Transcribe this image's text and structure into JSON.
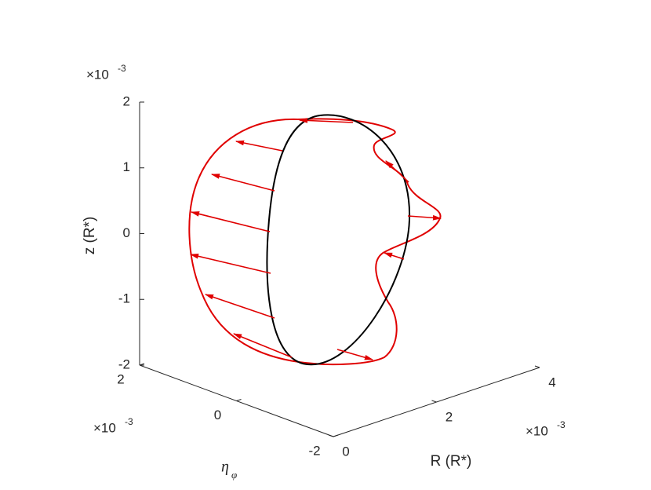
{
  "chart_data": {
    "type": "line3d",
    "zlabel": "z (R*)",
    "ylabel": {
      "symbol": "η",
      "subscript": "φ"
    },
    "xlabel": "R (R*)",
    "xlim": [
      0,
      4
    ],
    "xticks": [
      0,
      2,
      4
    ],
    "ylim": [
      -2,
      2
    ],
    "yticks": [
      -2,
      0,
      2
    ],
    "zlim": [
      -2,
      2
    ],
    "zticks": [
      -2,
      -1,
      0,
      1,
      2
    ],
    "multiplier": {
      "base": "×10",
      "exponent": "-3"
    }
  }
}
